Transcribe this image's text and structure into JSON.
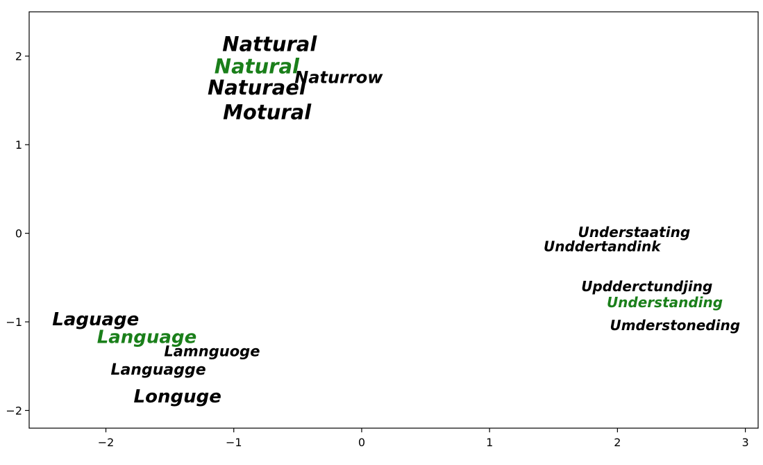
{
  "chart_data": {
    "type": "scatter",
    "title": "",
    "xlabel": "",
    "ylabel": "",
    "xlim": [
      -2.6,
      3.1
    ],
    "ylim": [
      -2.2,
      2.5
    ],
    "grid": false,
    "xticks": [
      -2,
      -1,
      0,
      1,
      2,
      3
    ],
    "yticks": [
      -2,
      -1,
      0,
      1,
      2
    ],
    "xtick_labels": [
      "−2",
      "−1",
      "0",
      "1",
      "2",
      "3"
    ],
    "ytick_labels": [
      "−2",
      "−1",
      "0",
      "1",
      "2"
    ],
    "colors": {
      "highlight": "#1a7f1a",
      "normal": "#000000"
    },
    "points": [
      {
        "label": "Nattural",
        "x": -0.72,
        "y": 2.12,
        "highlight": false,
        "size": 29
      },
      {
        "label": "Natural",
        "x": -0.82,
        "y": 1.87,
        "highlight": true,
        "size": 29
      },
      {
        "label": "Naturael",
        "x": -0.82,
        "y": 1.63,
        "highlight": false,
        "size": 29
      },
      {
        "label": "Naturrow",
        "x": -0.18,
        "y": 1.75,
        "highlight": false,
        "size": 24
      },
      {
        "label": "Motural",
        "x": -0.74,
        "y": 1.35,
        "highlight": false,
        "size": 29
      },
      {
        "label": "Understaating",
        "x": 2.13,
        "y": 0.0,
        "highlight": false,
        "size": 20
      },
      {
        "label": "Unddertandink",
        "x": 1.88,
        "y": -0.16,
        "highlight": false,
        "size": 20
      },
      {
        "label": "Updderctundjing",
        "x": 2.23,
        "y": -0.61,
        "highlight": false,
        "size": 20
      },
      {
        "label": "Understanding",
        "x": 2.37,
        "y": -0.79,
        "highlight": true,
        "size": 20
      },
      {
        "label": "Umderstoneding",
        "x": 2.45,
        "y": -1.05,
        "highlight": false,
        "size": 20
      },
      {
        "label": "Laguage",
        "x": -2.08,
        "y": -0.98,
        "highlight": false,
        "size": 26
      },
      {
        "label": "Language",
        "x": -1.68,
        "y": -1.18,
        "highlight": true,
        "size": 26
      },
      {
        "label": "Lamnguoge",
        "x": -1.17,
        "y": -1.34,
        "highlight": false,
        "size": 21
      },
      {
        "label": "Languagge",
        "x": -1.59,
        "y": -1.55,
        "highlight": false,
        "size": 22
      },
      {
        "label": "Longuge",
        "x": -1.44,
        "y": -1.85,
        "highlight": false,
        "size": 26
      }
    ]
  }
}
